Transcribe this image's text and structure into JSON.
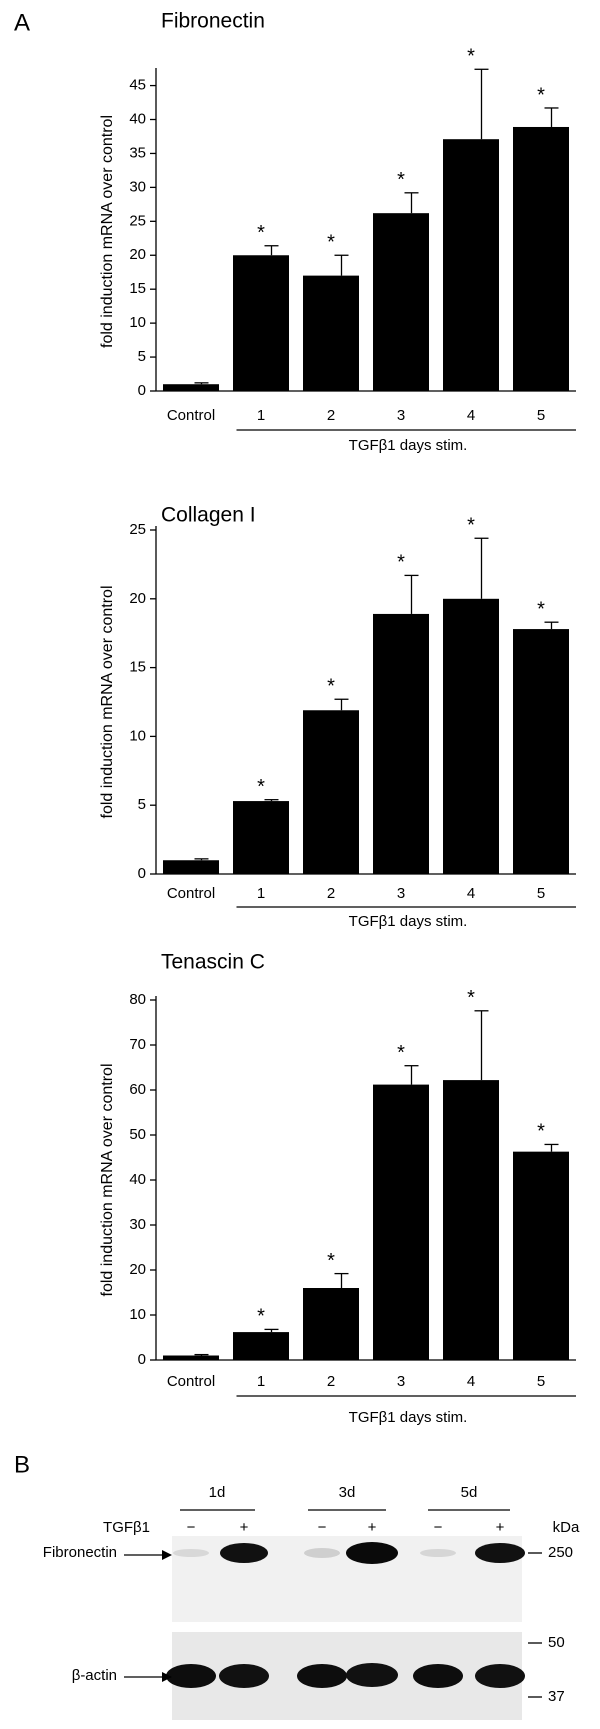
{
  "panel_a_label": "A",
  "chart_data": [
    {
      "type": "bar",
      "title": "Fibronectin",
      "ylabel": "fold induction mRNA over control",
      "categories": [
        "Control",
        "1",
        "2",
        "3",
        "4",
        "5"
      ],
      "group_label": "TGFβ1 days stim.",
      "values": [
        1,
        20,
        17,
        26.2,
        37.1,
        38.9
      ],
      "errors": [
        0.2,
        1.4,
        3,
        3,
        10.3,
        2.8
      ],
      "annotations": [
        null,
        "*",
        "*",
        "*",
        "*",
        "*"
      ],
      "color": "#000000",
      "ylim": [
        0,
        47
      ],
      "yticks": [
        0,
        5,
        10,
        15,
        20,
        25,
        30,
        35,
        40,
        45
      ]
    },
    {
      "type": "bar",
      "title": "Collagen I",
      "ylabel": "fold induction mRNA over control",
      "categories": [
        "Control",
        "1",
        "2",
        "3",
        "4",
        "5"
      ],
      "group_label": "TGFβ1 days stim.",
      "values": [
        1,
        5.3,
        11.9,
        18.9,
        20,
        17.8
      ],
      "errors": [
        0.1,
        0.1,
        0.8,
        2.8,
        4.4,
        0.5
      ],
      "annotations": [
        null,
        "*",
        "*",
        "*",
        "*",
        "*"
      ],
      "color": "#000000",
      "ylim": [
        0,
        25
      ],
      "yticks": [
        0,
        5,
        10,
        15,
        20,
        25
      ]
    },
    {
      "type": "bar",
      "title": "Tenascin C",
      "ylabel": "fold induction mRNA over control",
      "categories": [
        "Control",
        "1",
        "2",
        "3",
        "4",
        "5"
      ],
      "group_label": "TGFβ1 days stim.",
      "values": [
        1,
        6.2,
        16,
        61.2,
        62.2,
        46.3
      ],
      "errors": [
        0.2,
        0.6,
        3.2,
        4.2,
        15.4,
        1.6
      ],
      "annotations": [
        null,
        "*",
        "*",
        "*",
        "*",
        "*"
      ],
      "color": "#000000",
      "ylim": [
        0,
        80
      ],
      "yticks": [
        0,
        10,
        20,
        30,
        40,
        50,
        60,
        70,
        80
      ]
    }
  ],
  "blot": {
    "panel_label": "B",
    "timepoints": [
      "1d",
      "3d",
      "5d"
    ],
    "treatment_label": "TGFβ1",
    "conditions": [
      "−",
      "+",
      "−",
      "+",
      "−",
      "+"
    ],
    "unit_label": "kDa",
    "rows": [
      {
        "label": "Fibronectin",
        "markers": [
          "250"
        ]
      },
      {
        "label": "β-actin",
        "markers": [
          "50",
          "37"
        ]
      }
    ]
  }
}
